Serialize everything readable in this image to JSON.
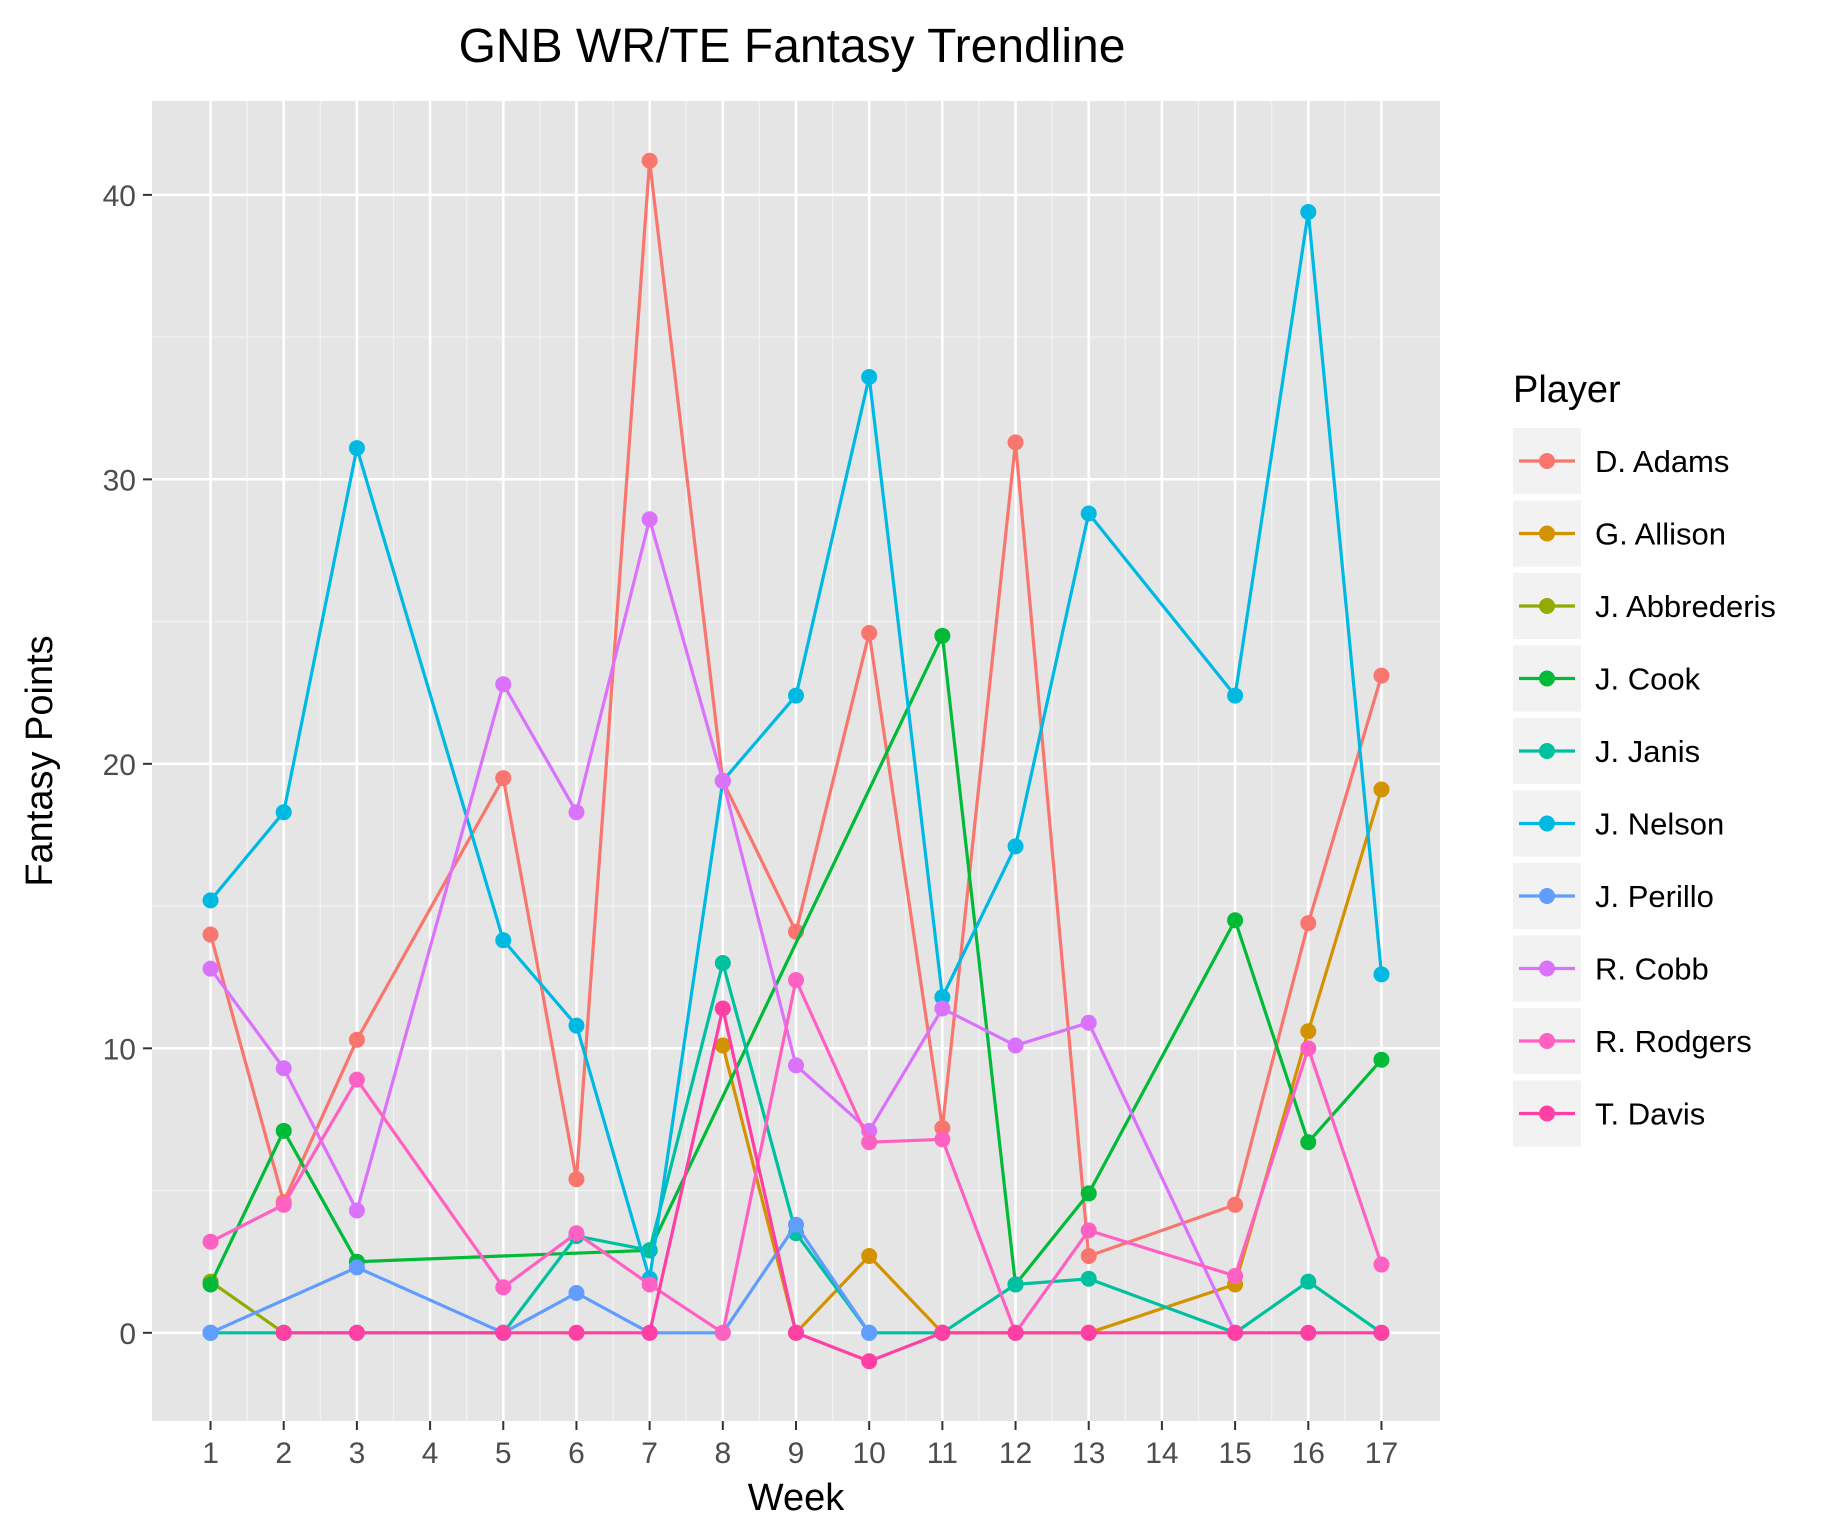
{
  "chart_data": {
    "type": "line",
    "title": "GNB WR/TE Fantasy Trendline",
    "xlabel": "Week",
    "ylabel": "Fantasy Points",
    "x": [
      1,
      2,
      3,
      4,
      5,
      6,
      7,
      8,
      9,
      10,
      11,
      12,
      13,
      14,
      15,
      16,
      17
    ],
    "x_tick_labels": [
      "1",
      "2",
      "3",
      "4",
      "5",
      "6",
      "7",
      "8",
      "9",
      "10",
      "11",
      "12",
      "13",
      "14",
      "15",
      "16",
      "17"
    ],
    "xlim": [
      0.2,
      17.8
    ],
    "ylim": [
      -3.1,
      43.3
    ],
    "y_ticks": [
      0,
      10,
      20,
      30,
      40
    ],
    "y_tick_labels": [
      "0",
      "10",
      "20",
      "30",
      "40"
    ],
    "grid": true,
    "background": "#e5e5e5",
    "legend": {
      "title": "Player",
      "position": "right"
    },
    "series": [
      {
        "name": "D. Adams",
        "color": "#F8766D",
        "points": [
          [
            1,
            14.0
          ],
          [
            2,
            4.6
          ],
          [
            3,
            10.3
          ],
          [
            5,
            19.5
          ],
          [
            6,
            5.4
          ],
          [
            7,
            41.2
          ],
          [
            8,
            19.4
          ],
          [
            9,
            14.1
          ],
          [
            10,
            24.6
          ],
          [
            11,
            7.2
          ],
          [
            12,
            31.3
          ],
          [
            13,
            2.7
          ],
          [
            15,
            4.5
          ],
          [
            16,
            14.4
          ],
          [
            17,
            23.1
          ]
        ]
      },
      {
        "name": "G. Allison",
        "color": "#D39200",
        "points": [
          [
            8,
            10.1
          ],
          [
            9,
            0
          ],
          [
            10,
            2.7
          ],
          [
            11,
            0
          ],
          [
            12,
            0
          ],
          [
            13,
            0
          ],
          [
            15,
            1.7
          ],
          [
            16,
            10.6
          ],
          [
            17,
            19.1
          ]
        ]
      },
      {
        "name": "J. Abbrederis",
        "color": "#93AA00",
        "points": [
          [
            1,
            1.8
          ],
          [
            2,
            0
          ]
        ]
      },
      {
        "name": "J. Cook",
        "color": "#00BA38",
        "points": [
          [
            1,
            1.7
          ],
          [
            2,
            7.1
          ],
          [
            3,
            2.5
          ],
          [
            7,
            2.9
          ],
          [
            11,
            24.5
          ],
          [
            12,
            1.7
          ],
          [
            13,
            4.9
          ],
          [
            15,
            14.5
          ],
          [
            16,
            6.7
          ],
          [
            17,
            9.6
          ]
        ]
      },
      {
        "name": "J. Janis",
        "color": "#00C19F",
        "points": [
          [
            1,
            0
          ],
          [
            2,
            0
          ],
          [
            3,
            0
          ],
          [
            5,
            0
          ],
          [
            6,
            3.4
          ],
          [
            7,
            2.9
          ],
          [
            8,
            13.0
          ],
          [
            9,
            3.5
          ],
          [
            10,
            0
          ],
          [
            11,
            0
          ],
          [
            12,
            1.7
          ],
          [
            13,
            1.9
          ],
          [
            15,
            0
          ],
          [
            16,
            1.8
          ],
          [
            17,
            0
          ]
        ]
      },
      {
        "name": "J. Nelson",
        "color": "#00B9E3",
        "points": [
          [
            1,
            15.2
          ],
          [
            2,
            18.3
          ],
          [
            3,
            31.1
          ],
          [
            5,
            13.8
          ],
          [
            6,
            10.8
          ],
          [
            7,
            1.9
          ],
          [
            8,
            19.4
          ],
          [
            9,
            22.4
          ],
          [
            10,
            33.6
          ],
          [
            11,
            11.8
          ],
          [
            12,
            17.1
          ],
          [
            13,
            28.8
          ],
          [
            15,
            22.4
          ],
          [
            16,
            39.4
          ],
          [
            17,
            12.6
          ]
        ]
      },
      {
        "name": "J. Perillo",
        "color": "#619CFF",
        "points": [
          [
            1,
            0
          ],
          [
            3,
            2.3
          ],
          [
            5,
            0
          ],
          [
            6,
            1.4
          ],
          [
            7,
            0
          ],
          [
            8,
            0
          ],
          [
            9,
            3.8
          ],
          [
            10,
            0
          ]
        ]
      },
      {
        "name": "R. Cobb",
        "color": "#DB72FB",
        "points": [
          [
            1,
            12.8
          ],
          [
            2,
            9.3
          ],
          [
            3,
            4.3
          ],
          [
            5,
            22.8
          ],
          [
            6,
            18.3
          ],
          [
            7,
            28.6
          ],
          [
            8,
            19.4
          ],
          [
            9,
            9.4
          ],
          [
            10,
            7.1
          ],
          [
            11,
            11.4
          ],
          [
            12,
            10.1
          ],
          [
            13,
            10.9
          ],
          [
            15,
            0
          ]
        ]
      },
      {
        "name": "R. Rodgers",
        "color": "#FF61C3",
        "points": [
          [
            1,
            3.2
          ],
          [
            2,
            4.5
          ],
          [
            3,
            8.9
          ],
          [
            5,
            1.6
          ],
          [
            6,
            3.5
          ],
          [
            7,
            1.7
          ],
          [
            8,
            0
          ],
          [
            9,
            12.4
          ],
          [
            10,
            6.7
          ],
          [
            11,
            6.8
          ],
          [
            12,
            0
          ],
          [
            13,
            3.6
          ],
          [
            15,
            2.0
          ],
          [
            16,
            10.0
          ],
          [
            17,
            2.4
          ]
        ]
      },
      {
        "name": "T. Davis",
        "color": "#FF3FA4",
        "points": [
          [
            2,
            0
          ],
          [
            3,
            0
          ],
          [
            5,
            0
          ],
          [
            6,
            0
          ],
          [
            7,
            0
          ],
          [
            8,
            11.4
          ],
          [
            9,
            0
          ],
          [
            10,
            -1.0
          ],
          [
            11,
            0
          ],
          [
            12,
            0
          ],
          [
            13,
            0
          ],
          [
            15,
            0
          ],
          [
            16,
            0
          ],
          [
            17,
            0
          ]
        ]
      }
    ]
  }
}
